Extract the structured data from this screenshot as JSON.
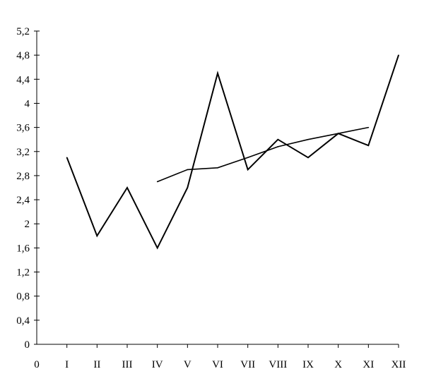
{
  "chart_data": {
    "type": "line",
    "title": "",
    "xlabel": "",
    "ylabel": "",
    "x_tick_labels": [
      "0",
      "I",
      "II",
      "III",
      "IV",
      "V",
      "VI",
      "VII",
      "VIII",
      "IX",
      "X",
      "XI",
      "XII"
    ],
    "y_tick_labels": [
      "0",
      "0,4",
      "0,8",
      "1,2",
      "1,6",
      "2",
      "2,4",
      "2,8",
      "3,2",
      "3,6",
      "4",
      "4,4",
      "4,8",
      "5,2"
    ],
    "ylim": [
      0,
      5.2
    ],
    "xlim": [
      0,
      12
    ],
    "grid": false,
    "legend": false,
    "series": [
      {
        "x": [
          1,
          2,
          3,
          4,
          5,
          6,
          7,
          8,
          9,
          10,
          11,
          12
        ],
        "values": [
          3.1,
          1.8,
          2.6,
          1.6,
          2.6,
          4.5,
          2.9,
          3.4,
          3.1,
          3.5,
          3.3,
          4.8
        ]
      },
      {
        "x": [
          4,
          5,
          6,
          7,
          8,
          9,
          10,
          11
        ],
        "values": [
          2.7,
          2.9,
          2.93,
          3.1,
          3.28,
          3.4,
          3.5,
          3.6
        ]
      }
    ],
    "colors": {
      "line": "#000000",
      "axis": "#000000"
    }
  }
}
